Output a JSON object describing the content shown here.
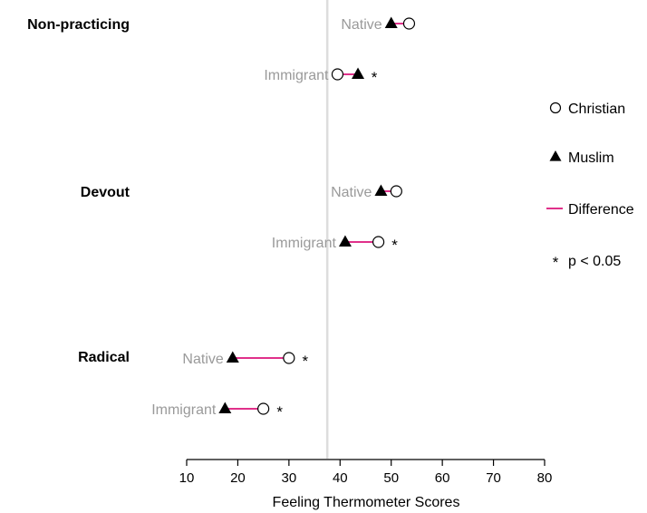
{
  "chart_data": {
    "type": "dot-difference",
    "xlabel": "Feeling Thermometer Scores",
    "xlim": [
      10,
      80
    ],
    "xticks": [
      10,
      20,
      30,
      40,
      50,
      60,
      70,
      80
    ],
    "reference_line_x": 37.5,
    "groups": [
      {
        "label": "Non-practicing",
        "rows": [
          {
            "label": "Native",
            "christian": 53.5,
            "muslim": 50.0,
            "significant": false
          },
          {
            "label": "Immigrant",
            "christian": 39.5,
            "muslim": 43.5,
            "significant": true
          }
        ]
      },
      {
        "label": "Devout",
        "rows": [
          {
            "label": "Native",
            "christian": 51.0,
            "muslim": 48.0,
            "significant": false
          },
          {
            "label": "Immigrant",
            "christian": 47.5,
            "muslim": 41.0,
            "significant": true
          }
        ]
      },
      {
        "label": "Radical",
        "rows": [
          {
            "label": "Native",
            "christian": 30.0,
            "muslim": 19.0,
            "significant": true
          },
          {
            "label": "Immigrant",
            "christian": 25.0,
            "muslim": 17.5,
            "significant": true
          }
        ]
      }
    ],
    "legend": {
      "position": "right",
      "items": [
        {
          "key": "christian",
          "label": "Christian",
          "marker": "open-circle"
        },
        {
          "key": "muslim",
          "label": "Muslim",
          "marker": "filled-triangle"
        },
        {
          "key": "difference",
          "label": "Difference",
          "marker": "line"
        },
        {
          "key": "significance",
          "label": "p < 0.05",
          "marker": "asterisk"
        }
      ]
    },
    "significance_marker": "*",
    "colors": {
      "difference": "#e0308a",
      "reference_line": "#dddddd",
      "row_label": "#9a9a9a",
      "marker": "#000000"
    }
  }
}
